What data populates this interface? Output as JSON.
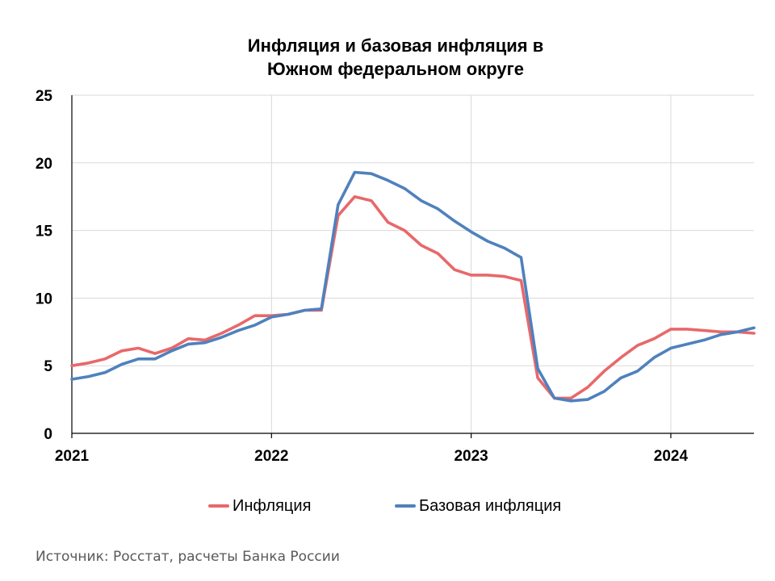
{
  "chart_data": {
    "type": "line",
    "title_lines": [
      "Инфляция и базовая инфляция в",
      "Южном федеральном округе"
    ],
    "xlabel": "",
    "ylabel": "",
    "x_tick_labels": [
      "2021",
      "2022",
      "2023",
      "2024"
    ],
    "x_tick_values": [
      0,
      12,
      24,
      36
    ],
    "xlim": [
      0,
      41
    ],
    "ylim": [
      0,
      25
    ],
    "y_ticks": [
      0,
      5,
      10,
      15,
      20,
      25
    ],
    "grid": true,
    "legend_position": "bottom",
    "series": [
      {
        "name": "Инфляция",
        "color": "#E8686A",
        "values": [
          5.0,
          5.2,
          5.5,
          6.1,
          6.3,
          5.9,
          6.3,
          7.0,
          6.9,
          7.4,
          8.0,
          8.7,
          8.7,
          8.8,
          9.1,
          9.1,
          16.1,
          17.5,
          17.2,
          15.6,
          15.0,
          13.9,
          13.3,
          12.1,
          11.7,
          11.7,
          11.6,
          11.3,
          4.1,
          2.6,
          2.6,
          3.4,
          4.6,
          5.6,
          6.5,
          7.0,
          7.7,
          7.7,
          7.6,
          7.5,
          7.5,
          7.4
        ]
      },
      {
        "name": "Базовая инфляция",
        "color": "#4F81BD",
        "values": [
          4.0,
          4.2,
          4.5,
          5.1,
          5.5,
          5.5,
          6.1,
          6.6,
          6.7,
          7.1,
          7.6,
          8.0,
          8.6,
          8.8,
          9.1,
          9.2,
          16.9,
          19.3,
          19.2,
          18.7,
          18.1,
          17.2,
          16.6,
          15.7,
          14.9,
          14.2,
          13.7,
          13.0,
          4.8,
          2.6,
          2.4,
          2.5,
          3.1,
          4.1,
          4.6,
          5.6,
          6.3,
          6.6,
          6.9,
          7.3,
          7.5,
          7.8
        ]
      }
    ]
  },
  "footer": {
    "source": "Источник: Росстат, расчеты Банка России"
  }
}
